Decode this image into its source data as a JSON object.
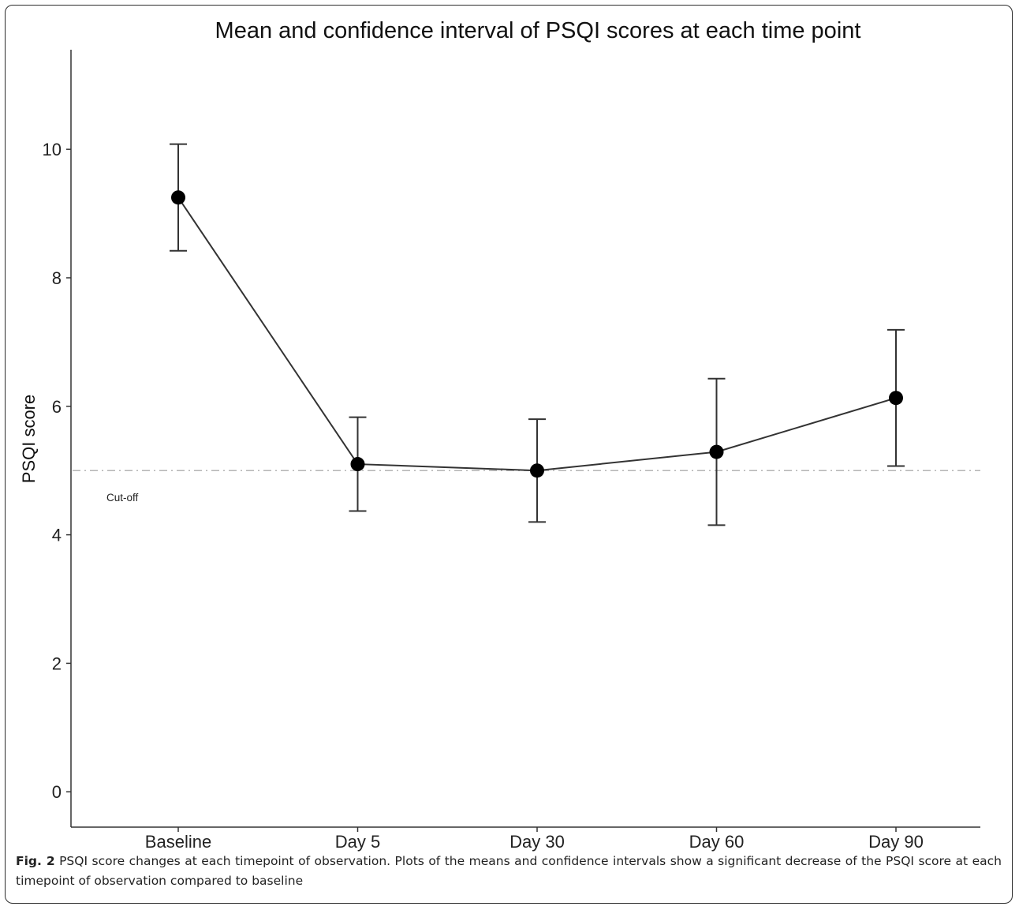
{
  "chart_data": {
    "type": "line",
    "title": "Mean and confidence interval of PSQI scores at each time point",
    "xlabel": "",
    "ylabel": "PSQI score",
    "categories": [
      "Baseline",
      "Day 5",
      "Day 30",
      "Day 60",
      "Day 90"
    ],
    "series": [
      {
        "values": [
          9.25,
          5.1,
          5.0,
          5.29,
          6.13
        ],
        "ci_lower": [
          8.42,
          4.37,
          4.2,
          4.15,
          5.07
        ],
        "ci_upper": [
          10.08,
          5.83,
          5.8,
          6.43,
          7.19
        ]
      }
    ],
    "reference_line": {
      "y": 5,
      "label": "Cut-off",
      "style": "dash-dot"
    },
    "ylim": [
      -0.55,
      11.55
    ],
    "yticks": [
      0,
      2,
      4,
      6,
      8,
      10
    ],
    "grid": false,
    "legend": "none",
    "colors": {
      "line": "#333333",
      "marker": "#000000",
      "reference": "#b5b5b5"
    }
  },
  "caption": {
    "label": "Fig. 2",
    "text": "PSQI score changes at each timepoint of observation. Plots of the means and confidence intervals show a significant decrease of the PSQI score at each timepoint of observation compared to baseline"
  }
}
